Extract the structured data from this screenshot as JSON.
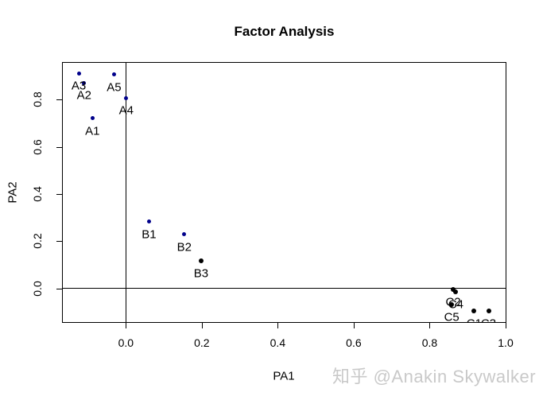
{
  "title": "Factor Analysis",
  "watermark": {
    "text": "知乎 @Anakin Skywalker",
    "color": "#c9c9c9"
  },
  "colors": {
    "background": "#ffffff",
    "axis": "#000000",
    "blue_points": "#00008B",
    "black_points": "#000000"
  },
  "chart_data": {
    "type": "scatter",
    "title": "Factor Analysis",
    "xlabel": "PA1",
    "ylabel": "PA2",
    "xlim": [
      -0.166,
      1.0
    ],
    "ylim": [
      -0.143,
      0.956
    ],
    "grid": false,
    "legend_position": "none",
    "x_ticks": [
      {
        "label": "0.0",
        "value": 0.0
      },
      {
        "label": "0.2",
        "value": 0.2
      },
      {
        "label": "0.4",
        "value": 0.4
      },
      {
        "label": "0.6",
        "value": 0.6
      },
      {
        "label": "0.8",
        "value": 0.8
      },
      {
        "label": "1.0",
        "value": 1.0
      }
    ],
    "y_ticks": [
      {
        "label": "0.0",
        "value": 0.0
      },
      {
        "label": "0.2",
        "value": 0.2
      },
      {
        "label": "0.4",
        "value": 0.4
      },
      {
        "label": "0.6",
        "value": 0.6
      },
      {
        "label": "0.8",
        "value": 0.8
      }
    ],
    "reference_lines": {
      "h": 0.0,
      "v": 0.0
    },
    "series": [
      {
        "name": "blue",
        "color": "#00008B",
        "dot_size_px": 5,
        "points": [
          {
            "label": "A1",
            "x": -0.088,
            "y": 0.721
          },
          {
            "label": "A2",
            "x": -0.11,
            "y": 0.871
          },
          {
            "label": "A3",
            "x": -0.124,
            "y": 0.911
          },
          {
            "label": "A4",
            "x": 0.001,
            "y": 0.806
          },
          {
            "label": "A5",
            "x": -0.031,
            "y": 0.906
          },
          {
            "label": "B1",
            "x": 0.061,
            "y": 0.283
          },
          {
            "label": "B2",
            "x": 0.154,
            "y": 0.228
          }
        ]
      },
      {
        "name": "black",
        "color": "#000000",
        "dot_size_px": 6,
        "points": [
          {
            "label": "B3",
            "x": 0.198,
            "y": 0.116
          },
          {
            "label": "C2",
            "x": 0.862,
            "y": -0.004
          },
          {
            "label": "C4",
            "x": 0.869,
            "y": -0.015
          },
          {
            "label": "C5",
            "x": 0.858,
            "y": -0.068
          },
          {
            "label": "C1",
            "x": 0.917,
            "y": -0.097
          },
          {
            "label": "C3",
            "x": 0.955,
            "y": -0.097
          }
        ]
      }
    ]
  }
}
